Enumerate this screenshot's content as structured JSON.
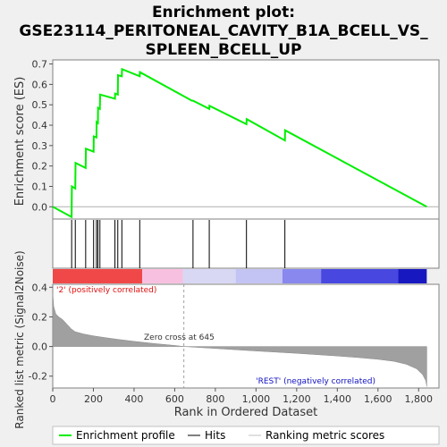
{
  "chart_data": {
    "type": "line",
    "title_lines": [
      "Enrichment plot:",
      "GSE23114_PERITONEAL_CAVITY_B1A_BCELL_VS_",
      "SPLEEN_BCELL_UP"
    ],
    "es_panel": {
      "ylabel": "Enrichment score (ES)",
      "ylim": [
        -0.06,
        0.72
      ],
      "yticks": [
        0.0,
        0.1,
        0.2,
        0.3,
        0.4,
        0.5,
        0.6,
        0.7
      ],
      "ytick_labels": [
        "0.0",
        "0.1",
        "0.2",
        "0.3",
        "0.4",
        "0.5",
        "0.6",
        "0.7"
      ],
      "series": [
        {
          "name": "Enrichment profile",
          "color": "#00ee00",
          "x": [
            0,
            93,
            94,
            111,
            112,
            162,
            163,
            201,
            202,
            215,
            216,
            222,
            223,
            232,
            233,
            306,
            307,
            320,
            321,
            340,
            341,
            428,
            429,
            685,
            690,
            770,
            771,
            953,
            954,
            1142,
            1143,
            1840
          ],
          "y": [
            0.0,
            -0.05,
            0.1,
            0.09,
            0.215,
            0.19,
            0.285,
            0.27,
            0.345,
            0.34,
            0.415,
            0.41,
            0.485,
            0.48,
            0.55,
            0.53,
            0.555,
            0.55,
            0.645,
            0.64,
            0.675,
            0.64,
            0.66,
            0.52,
            0.52,
            0.48,
            0.495,
            0.405,
            0.43,
            0.325,
            0.375,
            0.0
          ]
        }
      ]
    },
    "hits": {
      "name": "Hits",
      "positions": [
        93,
        111,
        162,
        201,
        215,
        222,
        232,
        306,
        320,
        340,
        428,
        690,
        770,
        953,
        1142
      ]
    },
    "color_bar": {
      "segments": [
        {
          "from": 0,
          "to": 440,
          "color": "#f04848"
        },
        {
          "from": 440,
          "to": 640,
          "color": "#f8c0e0"
        },
        {
          "from": 640,
          "to": 900,
          "color": "#d8d8f4"
        },
        {
          "from": 900,
          "to": 1130,
          "color": "#c4c4f4"
        },
        {
          "from": 1130,
          "to": 1320,
          "color": "#8888ee"
        },
        {
          "from": 1320,
          "to": 1700,
          "color": "#4848e0"
        },
        {
          "from": 1700,
          "to": 1840,
          "color": "#1818c0"
        }
      ]
    },
    "metric_panel": {
      "ylabel": "Ranked list metric (Signal2Noise)",
      "xlabel": "Rank in Ordered Dataset",
      "ylim": [
        -0.28,
        0.42
      ],
      "yticks": [
        -0.2,
        0.0,
        0.2,
        0.4
      ],
      "ytick_labels": [
        "-0.2",
        "0.0",
        "0.2",
        "0.4"
      ],
      "xlim": [
        0,
        1900
      ],
      "xticks": [
        0,
        200,
        400,
        600,
        800,
        1000,
        1200,
        1400,
        1600,
        1800
      ],
      "xtick_labels": [
        "0",
        "200",
        "400",
        "600",
        "800",
        "1,000",
        "1,200",
        "1,400",
        "1,600",
        "1,800"
      ],
      "series": [
        {
          "name": "Ranking metric scores",
          "color": "#a0a0a0",
          "x": [
            0,
            5,
            15,
            30,
            50,
            70,
            90,
            110,
            150,
            200,
            260,
            320,
            400,
            500,
            600,
            645,
            700,
            800,
            900,
            1000,
            1100,
            1200,
            1300,
            1400,
            1500,
            1600,
            1680,
            1740,
            1790,
            1820,
            1835,
            1840
          ],
          "y": [
            0.36,
            0.27,
            0.22,
            0.2,
            0.18,
            0.15,
            0.12,
            0.1,
            0.085,
            0.072,
            0.06,
            0.048,
            0.035,
            0.02,
            0.007,
            0.0,
            -0.005,
            -0.013,
            -0.022,
            -0.03,
            -0.038,
            -0.046,
            -0.055,
            -0.064,
            -0.074,
            -0.086,
            -0.1,
            -0.12,
            -0.15,
            -0.19,
            -0.23,
            -0.27
          ]
        }
      ],
      "annotations": {
        "pos_label": "'2' (positively correlated)",
        "neg_label": "'REST' (negatively correlated)",
        "zero_cross": "Zero cross at 645"
      },
      "zero_cross_x": 645
    },
    "legend": {
      "items": [
        "Enrichment profile",
        "Hits",
        "Ranking metric scores"
      ]
    }
  }
}
